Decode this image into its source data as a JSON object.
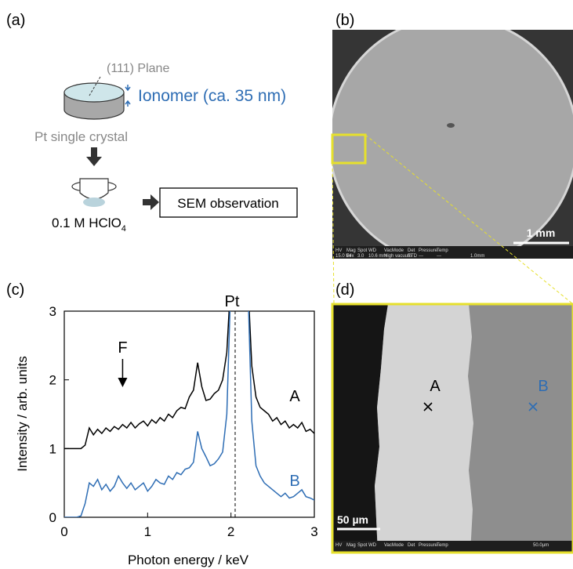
{
  "panel_a": {
    "label": "(a)",
    "plane": "(111) Plane",
    "ionomer": "Ionomer (ca. 35 nm)",
    "crystal": "Pt single crystal",
    "electrolyte": {
      "text": "0.1 M HClO",
      "subscript": "4"
    },
    "observation": "SEM observation"
  },
  "panel_b": {
    "label": "(b)",
    "scale_bar": "1 mm",
    "info_headers": [
      "HV",
      "Mag",
      "Spot",
      "WD",
      "VacMode",
      "Det",
      "Pressure",
      "Temp"
    ],
    "info_values": [
      "15.0 kV",
      "54x",
      "3.0",
      "10.6 mm",
      "High vacuum",
      "ETD",
      "---",
      "---"
    ],
    "info_scale": "1.0mm"
  },
  "panel_d": {
    "label": "(d)",
    "points": [
      {
        "name": "A",
        "color": "#000000"
      },
      {
        "name": "B",
        "color": "#2e6db4"
      }
    ],
    "scale_bar": "50 µm",
    "info_headers": [
      "HV",
      "Mag",
      "Spot",
      "WD",
      "VacMode",
      "Det",
      "Pressure",
      "Temp"
    ],
    "info_scale": "50.0µm"
  },
  "chart_data": {
    "type": "line",
    "label": "(c)",
    "xlabel": "Photon energy / keV",
    "ylabel": "Intensity / arb. units",
    "x": [
      0,
      0.05,
      0.1,
      0.15,
      0.2,
      0.25,
      0.3,
      0.35,
      0.4,
      0.45,
      0.5,
      0.55,
      0.6,
      0.65,
      0.7,
      0.75,
      0.8,
      0.85,
      0.9,
      0.95,
      1,
      1.05,
      1.1,
      1.15,
      1.2,
      1.25,
      1.3,
      1.35,
      1.4,
      1.45,
      1.5,
      1.55,
      1.6,
      1.65,
      1.7,
      1.75,
      1.8,
      1.85,
      1.9,
      1.95,
      2,
      2.05,
      2.1,
      2.15,
      2.2,
      2.25,
      2.3,
      2.35,
      2.4,
      2.45,
      2.5,
      2.55,
      2.6,
      2.65,
      2.7,
      2.75,
      2.8,
      2.85,
      2.9,
      2.95,
      3
    ],
    "series": [
      {
        "name": "A",
        "color": "#000000",
        "values": [
          1,
          1,
          1,
          1,
          1,
          1.05,
          1.3,
          1.2,
          1.28,
          1.22,
          1.3,
          1.25,
          1.32,
          1.28,
          1.35,
          1.3,
          1.38,
          1.3,
          1.36,
          1.4,
          1.33,
          1.42,
          1.37,
          1.45,
          1.4,
          1.5,
          1.45,
          1.55,
          1.6,
          1.58,
          1.75,
          1.85,
          2.25,
          1.9,
          1.7,
          1.72,
          1.8,
          1.85,
          2,
          2.4,
          3.5,
          3.5,
          3.5,
          3.5,
          3.5,
          2.2,
          1.75,
          1.6,
          1.55,
          1.5,
          1.4,
          1.45,
          1.35,
          1.4,
          1.3,
          1.35,
          1.3,
          1.38,
          1.25,
          1.28,
          1.22
        ]
      },
      {
        "name": "B",
        "color": "#2e6db4",
        "values": [
          0,
          0,
          0,
          0,
          0.02,
          0.2,
          0.5,
          0.45,
          0.55,
          0.4,
          0.48,
          0.38,
          0.45,
          0.6,
          0.5,
          0.42,
          0.5,
          0.4,
          0.45,
          0.5,
          0.38,
          0.45,
          0.55,
          0.5,
          0.48,
          0.6,
          0.55,
          0.65,
          0.62,
          0.7,
          0.72,
          0.8,
          1.25,
          1,
          0.88,
          0.75,
          0.78,
          0.85,
          0.95,
          1.5,
          3.5,
          3.5,
          3.5,
          3.5,
          3.5,
          1.4,
          0.75,
          0.6,
          0.5,
          0.45,
          0.4,
          0.35,
          0.3,
          0.35,
          0.28,
          0.3,
          0.35,
          0.4,
          0.3,
          0.28,
          0.25
        ]
      }
    ],
    "xlim": [
      0,
      3
    ],
    "xticks": [
      0,
      1,
      2,
      3
    ],
    "ylim": [
      0,
      3
    ],
    "yticks": [
      0,
      1,
      2,
      3
    ],
    "annotations": [
      {
        "text": "Pt",
        "x": 2.05
      },
      {
        "text": "F",
        "x": 0.7
      }
    ]
  }
}
